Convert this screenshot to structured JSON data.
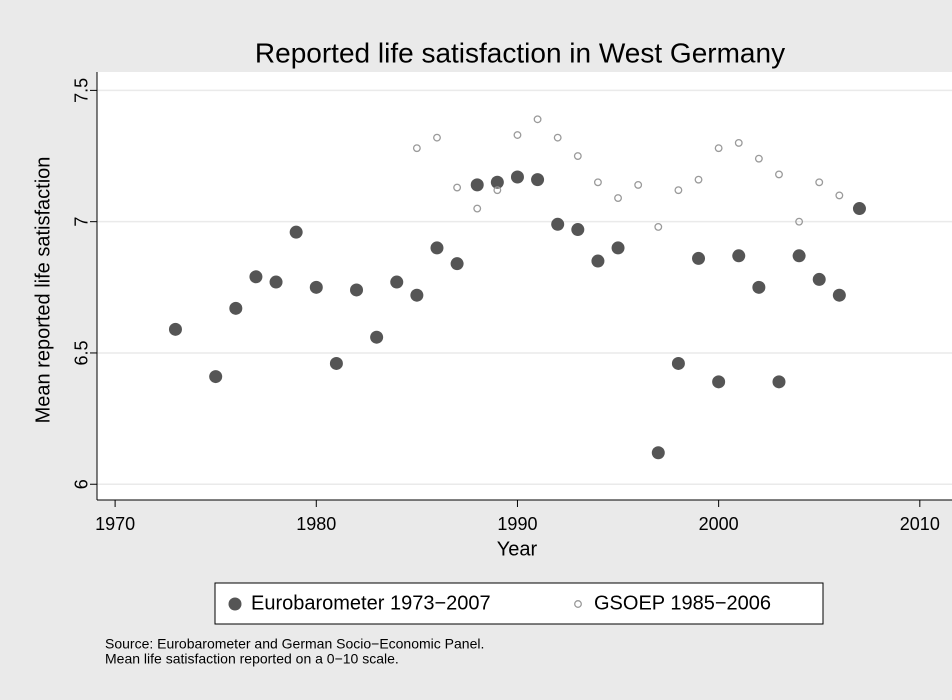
{
  "chart_data": {
    "type": "scatter",
    "title": "Reported life satisfaction in West Germany",
    "x_label": "Year",
    "y_label": "Mean reported life satisfaction",
    "notes": [
      "Source: Eurobarometer and German Socio−Economic Panel.",
      "Mean life satisfaction reported on a 0−10 scale."
    ],
    "xlim": [
      1969.1,
      2011.6
    ],
    "xticks": [
      1970,
      1980,
      1990,
      2000,
      2010
    ],
    "ylim": [
      5.94,
      7.57
    ],
    "yticks": [
      6,
      6.5,
      7,
      7.5
    ],
    "grid": true,
    "series": [
      {
        "name": "Eurobarometer 1973−2007",
        "color": "#555555",
        "marker": "filled",
        "x": [
          1973,
          1975,
          1976,
          1977,
          1978,
          1979,
          1980,
          1981,
          1982,
          1983,
          1984,
          1985,
          1986,
          1987,
          1988,
          1989,
          1990,
          1991,
          1992,
          1993,
          1994,
          1995,
          1997,
          1998,
          1999,
          2000,
          2001,
          2002,
          2003,
          2004,
          2005,
          2006,
          2007
        ],
        "values": [
          6.59,
          6.41,
          6.67,
          6.79,
          6.77,
          6.96,
          6.75,
          6.46,
          6.74,
          6.56,
          6.77,
          6.72,
          6.9,
          6.84,
          7.14,
          7.15,
          7.17,
          7.16,
          6.99,
          6.97,
          6.85,
          6.9,
          6.12,
          6.46,
          6.86,
          6.39,
          6.87,
          6.75,
          6.39,
          6.87,
          6.78,
          6.72,
          7.05
        ]
      },
      {
        "name": "GSOEP 1985−2006",
        "color": "#9a9a9a",
        "marker": "hollow",
        "x": [
          1985,
          1986,
          1987,
          1988,
          1989,
          1990,
          1991,
          1992,
          1993,
          1994,
          1995,
          1996,
          1997,
          1998,
          1999,
          2000,
          2001,
          2002,
          2003,
          2004,
          2005,
          2006
        ],
        "values": [
          7.28,
          7.32,
          7.13,
          7.05,
          7.12,
          7.33,
          7.39,
          7.32,
          7.25,
          7.15,
          7.09,
          7.14,
          6.98,
          7.12,
          7.16,
          7.28,
          7.3,
          7.24,
          7.18,
          7.0,
          7.15,
          7.1
        ]
      }
    ]
  }
}
